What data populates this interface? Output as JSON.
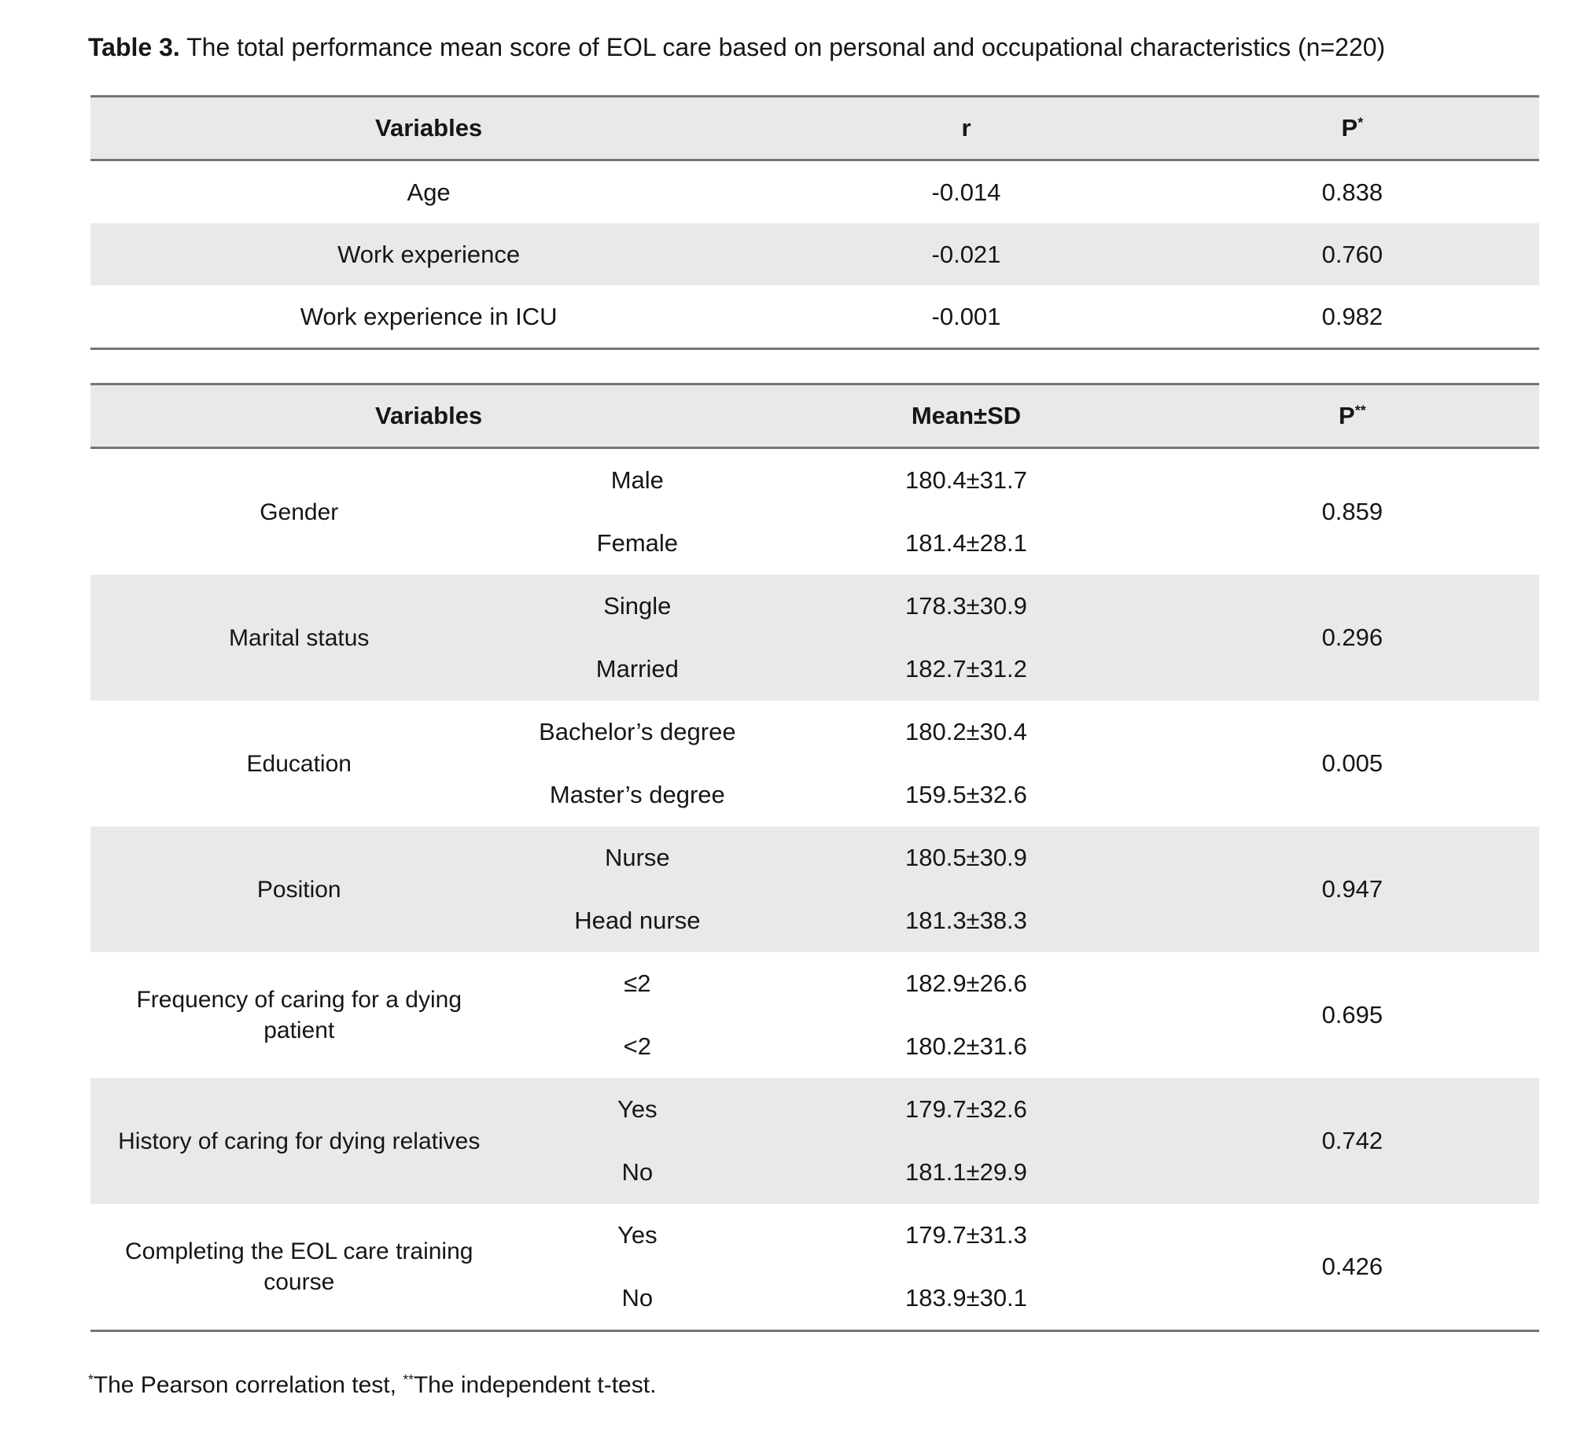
{
  "title": {
    "label": "Table 3.",
    "text": " The total performance mean score of EOL care based on personal and occupational characteristics (n=220)"
  },
  "correlation_table": {
    "headers": {
      "variables": "Variables",
      "r": "r",
      "p": "P",
      "p_sup": "*"
    },
    "rows": [
      {
        "variable": "Age",
        "r": "-0.014",
        "p": "0.838"
      },
      {
        "variable": "Work experience",
        "r": "-0.021",
        "p": "0.760"
      },
      {
        "variable": "Work experience in ICU",
        "r": "-0.001",
        "p": "0.982"
      }
    ]
  },
  "comparison_table": {
    "headers": {
      "variables": "Variables",
      "mean_sd": "Mean±SD",
      "p": "P",
      "p_sup": "**"
    },
    "groups": [
      {
        "variable": "Gender",
        "categories": [
          {
            "label": "Male",
            "mean_sd": "180.4±31.7"
          },
          {
            "label": "Female",
            "mean_sd": "181.4±28.1"
          }
        ],
        "p": "0.859"
      },
      {
        "variable": "Marital status",
        "categories": [
          {
            "label": "Single",
            "mean_sd": "178.3±30.9"
          },
          {
            "label": "Married",
            "mean_sd": "182.7±31.2"
          }
        ],
        "p": "0.296"
      },
      {
        "variable": "Education",
        "categories": [
          {
            "label": "Bachelor’s degree",
            "mean_sd": "180.2±30.4"
          },
          {
            "label": "Master’s degree",
            "mean_sd": "159.5±32.6"
          }
        ],
        "p": "0.005"
      },
      {
        "variable": "Position",
        "categories": [
          {
            "label": "Nurse",
            "mean_sd": "180.5±30.9"
          },
          {
            "label": "Head nurse",
            "mean_sd": "181.3±38.3"
          }
        ],
        "p": "0.947"
      },
      {
        "variable": "Frequency of caring for a dying patient",
        "categories": [
          {
            "label": "≤2",
            "mean_sd": "182.9±26.6"
          },
          {
            "label": "<2",
            "mean_sd": "180.2±31.6"
          }
        ],
        "p": "0.695"
      },
      {
        "variable": "History of caring for dying relatives",
        "categories": [
          {
            "label": "Yes",
            "mean_sd": "179.7±32.6"
          },
          {
            "label": "No",
            "mean_sd": "181.1±29.9"
          }
        ],
        "p": "0.742"
      },
      {
        "variable": "Completing the EOL care training course",
        "categories": [
          {
            "label": "Yes",
            "mean_sd": "179.7±31.3"
          },
          {
            "label": "No",
            "mean_sd": "183.9±30.1"
          }
        ],
        "p": "0.426"
      }
    ]
  },
  "footnote": {
    "star1": "*",
    "part1": "The Pearson correlation test, ",
    "star2": "**",
    "part2": "The independent t-test."
  },
  "colors": {
    "band": "#e9e9e9",
    "border": "#757575"
  }
}
